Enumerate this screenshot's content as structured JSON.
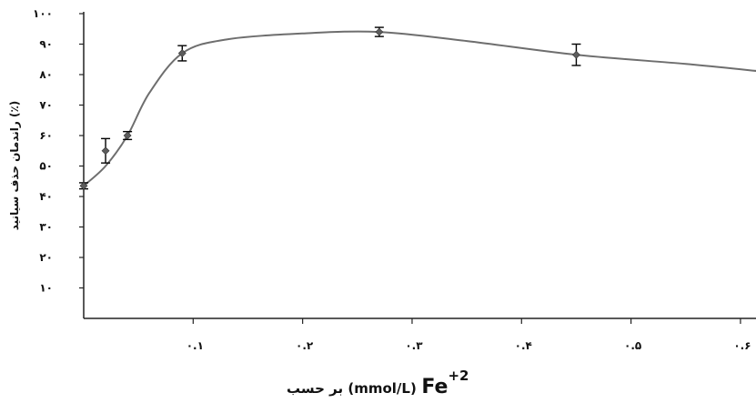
{
  "chart_data": {
    "type": "scatter",
    "title": "",
    "xlabel_prefix": "Fe",
    "xlabel_superscript": "+2",
    "xlabel_suffix": "بر حسب (mmol/L)",
    "ylabel": "راندمان حذف سیانید (٪)",
    "xlim": [
      0,
      0.62
    ],
    "ylim": [
      0,
      100
    ],
    "x_ticks": [
      0.1,
      0.2,
      0.3,
      0.4,
      0.5,
      0.6
    ],
    "x_tick_labels": [
      "۰.۱",
      "۰.۲",
      "۰.۳",
      "۰.۴",
      "۰.۵",
      "۰.۶"
    ],
    "y_ticks": [
      10,
      20,
      30,
      40,
      50,
      60,
      70,
      80,
      90,
      100
    ],
    "y_tick_labels": [
      "۱۰",
      "۲۰",
      "۳۰",
      "۴۰",
      "۵۰",
      "۶۰",
      "۷۰",
      "۸۰",
      "۹۰",
      "۱۰۰"
    ],
    "grid": false,
    "series": [
      {
        "x": [
          0.0,
          0.02,
          0.04,
          0.09,
          0.27,
          0.45
        ],
        "y": [
          43.5,
          55,
          60,
          87,
          94,
          86.5
        ],
        "error": [
          1,
          4,
          1.3,
          2.5,
          1.5,
          3.5
        ]
      }
    ],
    "trend": {
      "x": [
        0.0,
        0.02,
        0.04,
        0.06,
        0.09,
        0.13,
        0.2,
        0.27,
        0.35,
        0.45,
        0.55,
        0.62
      ],
      "y": [
        43.5,
        50,
        60,
        74,
        87,
        91.5,
        93.5,
        94,
        91,
        86.5,
        83.5,
        81
      ]
    },
    "colors": {
      "line": "#6e6e6e",
      "marker": "#5c5c5c",
      "error": "#000000",
      "axis": "#222222"
    }
  }
}
